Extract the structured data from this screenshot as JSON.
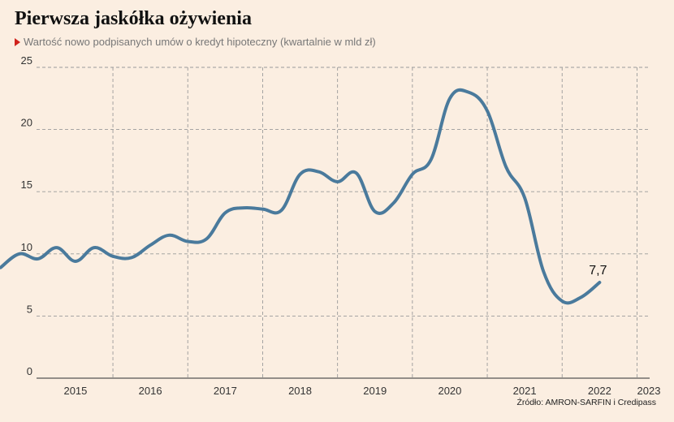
{
  "header": {
    "title": "Pierwsza jaskółka ożywienia",
    "subtitle": "Wartość nowo podpisanych umów o kredyt hipoteczny (kwartalnie w mld zł)"
  },
  "source": "Źródło: AMRON-SARFIN i Credipass",
  "colors": {
    "line": "#4a7a9c",
    "grid": "#9a9a9a",
    "background": "#fbeee1",
    "marker": "#d0221c"
  },
  "chart_data": {
    "type": "line",
    "title": "Pierwsza jaskółka ożywienia",
    "subtitle": "Wartość nowo podpisanych umów o kredyt hipoteczny (kwartalnie w mld zł)",
    "xlabel": "",
    "ylabel": "",
    "ylim": [
      0,
      25
    ],
    "y_ticks": [
      "0",
      "5",
      "10",
      "15",
      "20",
      "25"
    ],
    "x_ticks": [
      "2015",
      "2016",
      "2017",
      "2018",
      "2019",
      "2020",
      "2021",
      "2022",
      "2023"
    ],
    "grid": true,
    "series": [
      {
        "values": [
          [
            "2014 Q3",
            8.9
          ],
          [
            "2014 Q4",
            10.0
          ],
          [
            "2015 Q1",
            9.6
          ],
          [
            "2015 Q2",
            10.5
          ],
          [
            "2015 Q3",
            9.4
          ],
          [
            "2015 Q4",
            10.5
          ],
          [
            "2016 Q1",
            9.8
          ],
          [
            "2016 Q2",
            9.7
          ],
          [
            "2016 Q3",
            10.7
          ],
          [
            "2016 Q4",
            11.5
          ],
          [
            "2017 Q1",
            11.0
          ],
          [
            "2017 Q2",
            11.2
          ],
          [
            "2017 Q3",
            13.3
          ],
          [
            "2017 Q4",
            13.7
          ],
          [
            "2018 Q1",
            13.6
          ],
          [
            "2018 Q2",
            13.5
          ],
          [
            "2018 Q3",
            16.4
          ],
          [
            "2018 Q4",
            16.6
          ],
          [
            "2019 Q1",
            15.8
          ],
          [
            "2019 Q2",
            16.5
          ],
          [
            "2019 Q3",
            13.4
          ],
          [
            "2019 Q4",
            14.1
          ],
          [
            "2020 Q1",
            16.4
          ],
          [
            "2020 Q2",
            17.6
          ],
          [
            "2020 Q3",
            22.5
          ],
          [
            "2020 Q4",
            23.0
          ],
          [
            "2021 Q1",
            21.5
          ],
          [
            "2021 Q2",
            17.0
          ],
          [
            "2021 Q3",
            14.5
          ],
          [
            "2021 Q4",
            8.6
          ],
          [
            "2022 Q1",
            6.2
          ],
          [
            "2022 Q2",
            6.5
          ],
          [
            "2022 Q3",
            7.7
          ]
        ]
      }
    ],
    "annotations": [
      {
        "x": "2022 Q3",
        "y": 7.7,
        "text": "7,7"
      }
    ]
  }
}
